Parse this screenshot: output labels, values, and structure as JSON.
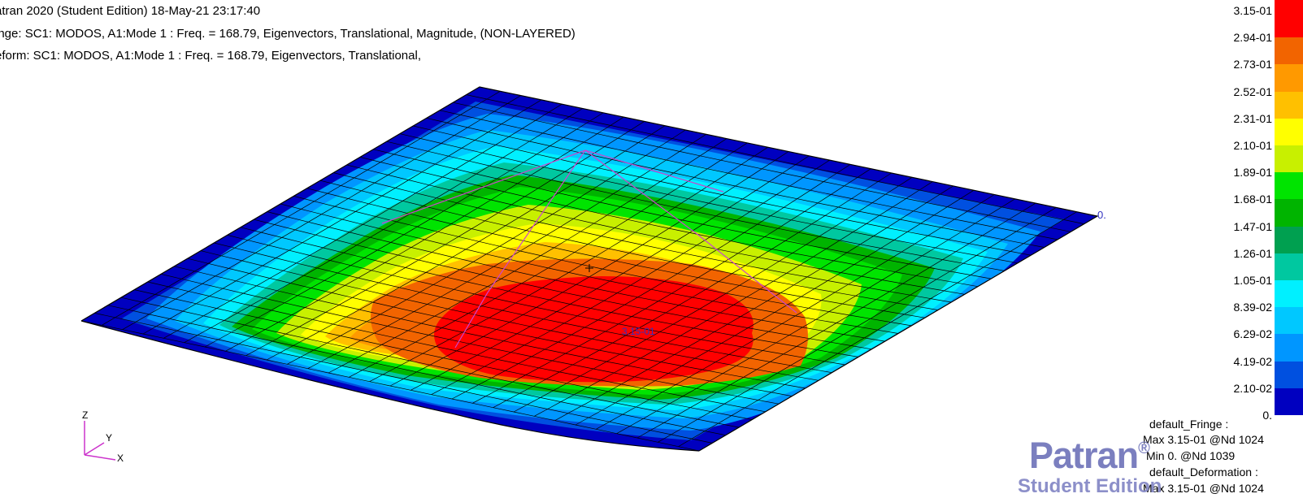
{
  "header": {
    "line1": "atran 2020  (Student Edition) 18-May-21 23:17:40",
    "line2": "inge: SC1: MODOS, A1:Mode 1 : Freq. = 168.79, Eigenvectors, Translational, Magnitude, (NON-LAYERED)",
    "line3": "eform: SC1: MODOS, A1:Mode 1 : Freq. = 168.79, Eigenvectors, Translational,"
  },
  "legend": {
    "labels": [
      "3.15-01",
      "2.94-01",
      "2.73-01",
      "2.52-01",
      "2.31-01",
      "2.10-01",
      "1.89-01",
      "1.68-01",
      "1.47-01",
      "1.26-01",
      "1.05-01",
      "8.39-02",
      "6.29-02",
      "4.19-02",
      "2.10-02",
      "0."
    ],
    "colors": [
      "#ff0000",
      "#f26400",
      "#ff9900",
      "#ffc000",
      "#ffff00",
      "#c8f000",
      "#00e400",
      "#00b400",
      "#00a050",
      "#00c8a0",
      "#00f0ff",
      "#00c8ff",
      "#0096ff",
      "#0050e0",
      "#0000c0"
    ]
  },
  "annotations": {
    "max_value": "3.15-01",
    "min_value": "0."
  },
  "info": {
    "fringe_title": "default_Fringe :",
    "fringe_max": "Max 3.15-01 @Nd 1024",
    "fringe_min": "Min  0. @Nd 1039",
    "deform_title": "default_Deformation :",
    "deform_max": "Max 3.15-01 @Nd 1024"
  },
  "axes": {
    "z": "Z",
    "y": "Y",
    "x": "X"
  },
  "branding": {
    "logo": "Patran",
    "registered": "®",
    "watermark": "Student Edition"
  }
}
